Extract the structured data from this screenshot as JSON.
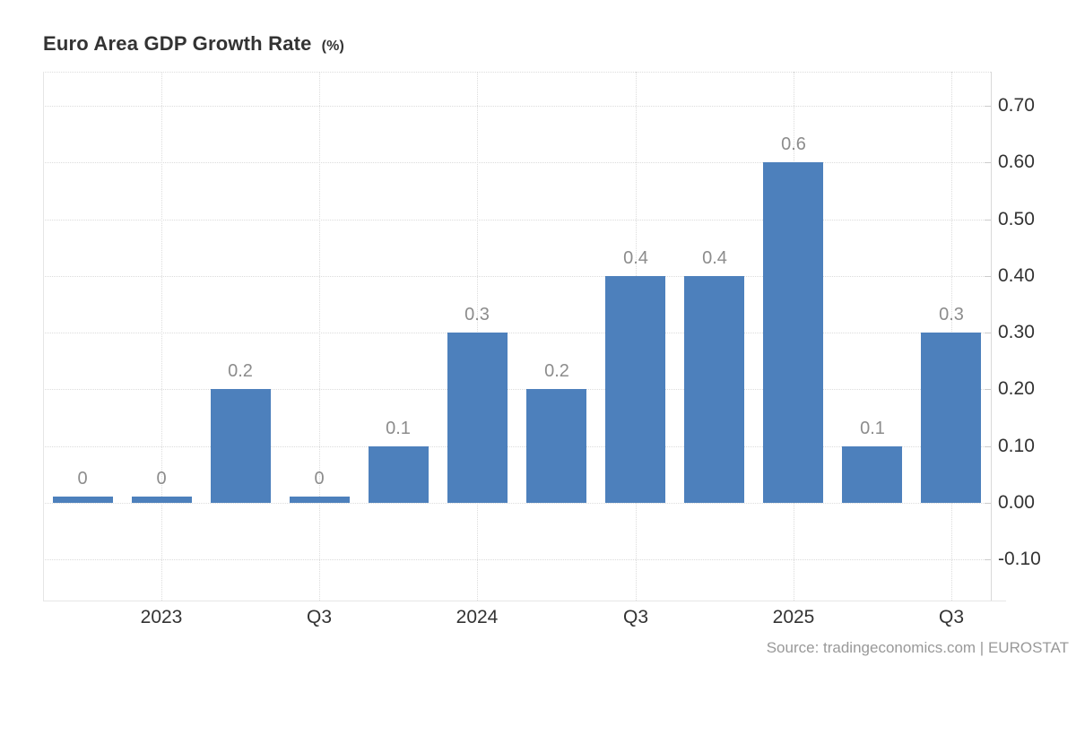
{
  "header": {
    "title": "Euro Area GDP Growth Rate",
    "title_suffix": "(%)"
  },
  "footer": {
    "source": "Source: tradingeconomics.com | EUROSTAT"
  },
  "chart_data": {
    "type": "bar",
    "title": "Euro Area GDP Growth Rate (%)",
    "values": [
      0,
      0,
      0.2,
      0,
      0.1,
      0.3,
      0.2,
      0.4,
      0.4,
      0.6,
      0.1,
      0.3
    ],
    "bar_labels": [
      "0",
      "0",
      "0.2",
      "0",
      "0.1",
      "0.3",
      "0.2",
      "0.4",
      "0.4",
      "0.6",
      "0.1",
      "0.3"
    ],
    "x_tick_labels": [
      {
        "index": 1,
        "label": "2023"
      },
      {
        "index": 3,
        "label": "Q3"
      },
      {
        "index": 5,
        "label": "2024"
      },
      {
        "index": 7,
        "label": "Q3"
      },
      {
        "index": 9,
        "label": "2025"
      },
      {
        "index": 11,
        "label": "Q3"
      }
    ],
    "y_ticks": [
      {
        "value": 0.7,
        "label": "0.70"
      },
      {
        "value": 0.6,
        "label": "0.60"
      },
      {
        "value": 0.5,
        "label": "0.50"
      },
      {
        "value": 0.4,
        "label": "0.40"
      },
      {
        "value": 0.3,
        "label": "0.30"
      },
      {
        "value": 0.2,
        "label": "0.20"
      },
      {
        "value": 0.1,
        "label": "0.10"
      },
      {
        "value": 0.0,
        "label": "0.00"
      },
      {
        "value": -0.1,
        "label": "-0.10"
      }
    ],
    "xlabel": "",
    "ylabel": "",
    "legend": "none",
    "grid": "dotted",
    "yaxis_side": "right",
    "colors": {
      "bar": "#4d80bc",
      "value_label": "#8c8c8c",
      "axis_label": "#333333",
      "gridline": "#dcdcdc",
      "axis_line": "#e6e6e6",
      "right_axis_line": "#d9d9d9",
      "title": "#333333",
      "source_text": "#999999",
      "background": "#ffffff"
    }
  }
}
